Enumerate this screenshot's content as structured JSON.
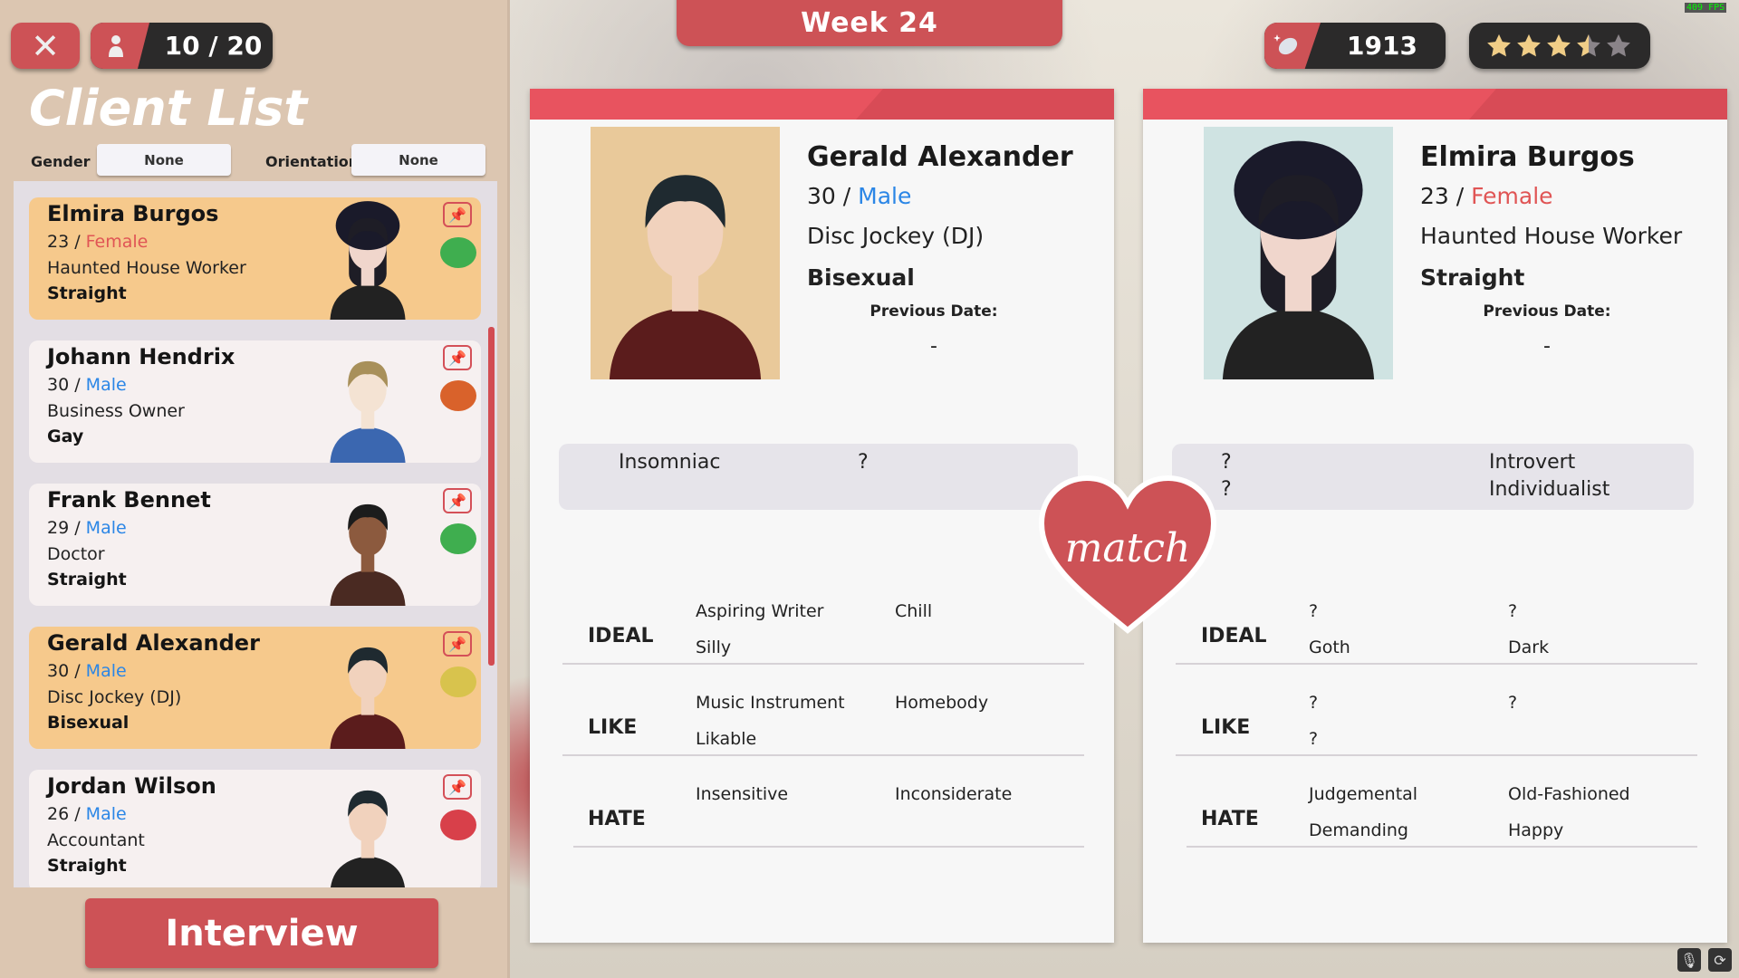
{
  "topbar": {
    "close_icon": "close-icon",
    "client_count": "10 / 20",
    "week": "Week 24",
    "coins": "1913",
    "rating": 3.5,
    "rating_max": 5,
    "fps": "409 FPS"
  },
  "sidebar": {
    "title": "Client List",
    "gender_label": "Gender",
    "gender_value": "None",
    "orientation_label": "Orientation",
    "orientation_value": "None",
    "interview_label": "Interview"
  },
  "clients": [
    {
      "name": "Elmira Burgos",
      "age": "23",
      "sep": " / ",
      "gender": "Female",
      "job": "Haunted House Worker",
      "orientation": "Straight",
      "mood": "happy",
      "selected": true
    },
    {
      "name": "Johann Hendrix",
      "age": "30",
      "sep": " / ",
      "gender": "Male",
      "job": "Business Owner",
      "orientation": "Gay",
      "mood": "sad",
      "selected": false
    },
    {
      "name": "Frank Bennet",
      "age": "29",
      "sep": " / ",
      "gender": "Male",
      "job": "Doctor",
      "orientation": "Straight",
      "mood": "happy",
      "selected": false
    },
    {
      "name": "Gerald Alexander",
      "age": "30",
      "sep": " / ",
      "gender": "Male",
      "job": "Disc Jockey (DJ)",
      "orientation": "Bisexual",
      "mood": "neutral",
      "selected": true
    },
    {
      "name": "Jordan Wilson",
      "age": "26",
      "sep": " / ",
      "gender": "Male",
      "job": "Accountant",
      "orientation": "Straight",
      "mood": "angry",
      "selected": false
    }
  ],
  "mood_colors": {
    "happy": "#3fae4f",
    "sad": "#d9622b",
    "neutral": "#d8c34d",
    "angry": "#d8404a"
  },
  "profiles": [
    {
      "name": "Gerald Alexander",
      "age": "30",
      "sep": " / ",
      "gender": "Male",
      "job": "Disc Jockey (DJ)",
      "orientation": "Bisexual",
      "prev_label": "Previous Date:",
      "prev_value": "-",
      "traits": [
        [
          "Insomniac"
        ],
        [
          "?"
        ]
      ],
      "rows": [
        {
          "label": "IDEAL",
          "items": [
            "Aspiring Writer",
            "Chill",
            "Silly",
            ""
          ]
        },
        {
          "label": "LIKE",
          "items": [
            "Music Instrument",
            "Homebody",
            "Likable",
            ""
          ]
        },
        {
          "label": "HATE",
          "items": [
            "Insensitive",
            "Inconsiderate",
            "",
            ""
          ]
        }
      ]
    },
    {
      "name": "Elmira Burgos",
      "age": "23",
      "sep": " / ",
      "gender": "Female",
      "job": "Haunted House Worker",
      "orientation": "Straight",
      "prev_label": "Previous Date:",
      "prev_value": "-",
      "traits": [
        [
          "?",
          "?"
        ],
        [
          "Introvert",
          "Individualist"
        ]
      ],
      "rows": [
        {
          "label": "IDEAL",
          "items": [
            "?",
            "?",
            "Goth",
            "Dark"
          ]
        },
        {
          "label": "LIKE",
          "items": [
            "?",
            "?",
            "?",
            ""
          ]
        },
        {
          "label": "HATE",
          "items": [
            "Judgemental",
            "Old-Fashioned",
            "Demanding",
            "Happy"
          ]
        }
      ]
    }
  ],
  "match_label": "match",
  "colors": {
    "accent": "#cd5256",
    "male": "#2b86e6",
    "female": "#e05555",
    "selected_card": "#f6c98c"
  }
}
